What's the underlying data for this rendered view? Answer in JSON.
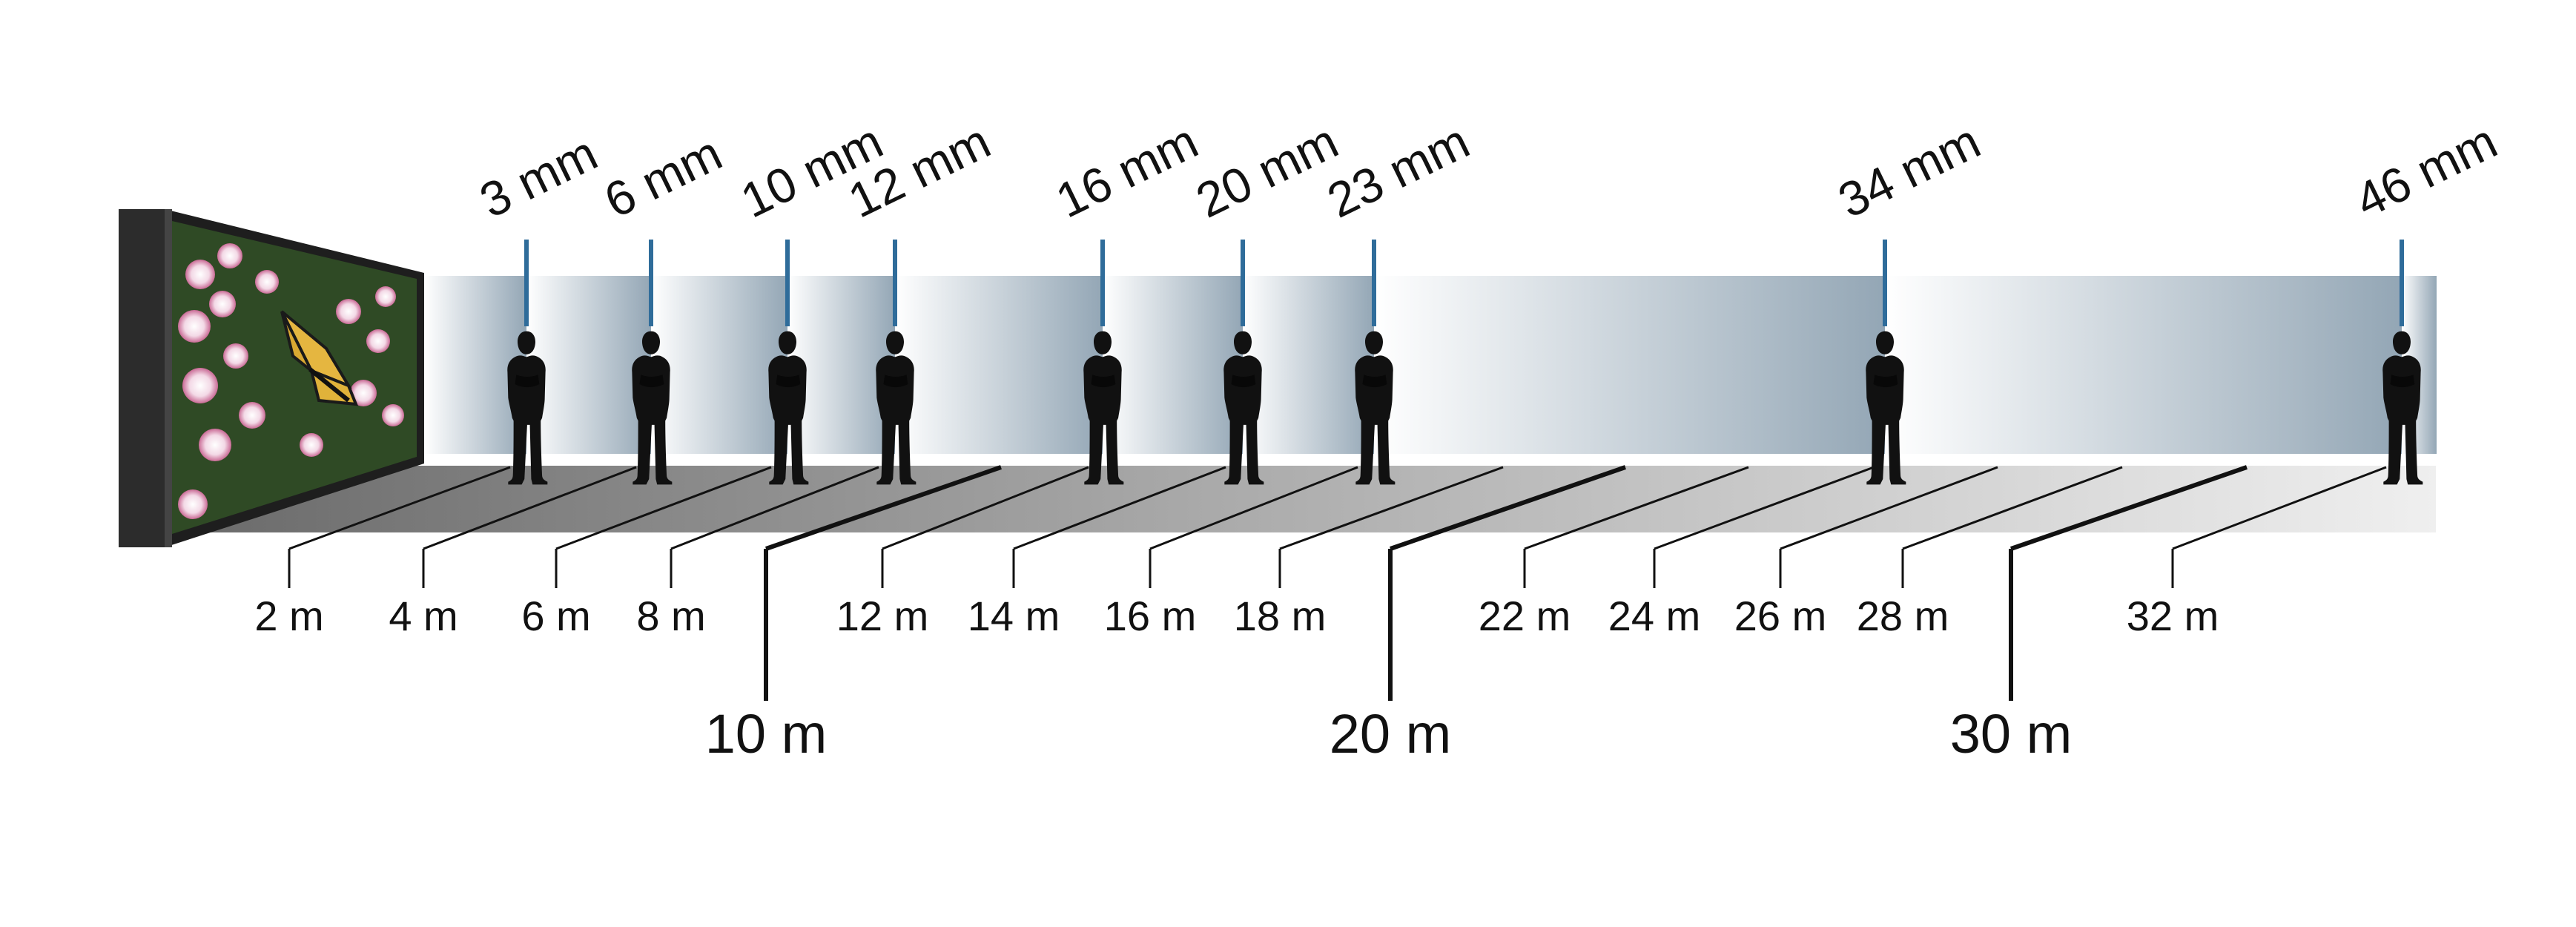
{
  "pitch_labels": [
    "3 mm",
    "6 mm",
    "10 mm",
    "12 mm",
    "16 mm",
    "20 mm",
    "23 mm",
    "34 mm",
    "46 mm"
  ],
  "minor_distances": [
    "2 m",
    "4 m",
    "6 m",
    "8 m",
    "12 m",
    "14 m",
    "16 m",
    "18 m",
    "22 m",
    "24 m",
    "26 m",
    "28 m",
    "32 m"
  ],
  "major_distances": [
    "10 m",
    "20 m",
    "30 m"
  ],
  "colors": {
    "band": "#93a6b5",
    "pitch_line": "#2f6c9a",
    "silhouette": "#111111",
    "floor_dark": "#6f6f6f",
    "floor_light": "#ececec"
  },
  "icons": {
    "screen": "led-display-screen-icon",
    "person": "standing-person-silhouette-icon",
    "butterfly": "butterfly-on-flowers-image"
  }
}
